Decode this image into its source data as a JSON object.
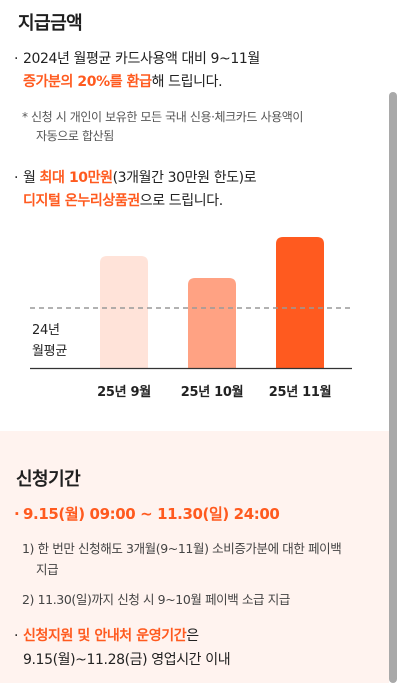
{
  "section1": {
    "title": "지급금액",
    "line1": "2024년 월평균 카드사용액 대비 9~11월",
    "line2_accent": "증가분의 20%를 환급",
    "line2_rest": "해 드립니다.",
    "note_line1": "* 신청 시 개인이 보유한 모든 국내 신용·체크카드 사용액이",
    "note_line2": "자동으로 합산됨",
    "line3_pre": "월 ",
    "line3_accent": "최대 10만원",
    "line3_rest": "(3개월간 30만원 한도)로",
    "line4_accent": "디지털 온누리상품권",
    "line4_rest": "으로 드립니다."
  },
  "chart_data": {
    "type": "bar",
    "categories": [
      "25년 9월",
      "25년 10월",
      "25년 11월"
    ],
    "values": [
      112,
      90,
      131
    ],
    "baseline_label_line1": "24년",
    "baseline_label_line2": "월평균",
    "baseline_value": 60,
    "ylim": [
      0,
      131
    ],
    "colors": [
      "#ffe3d9",
      "#ffa283",
      "#ff5a1f"
    ],
    "axis_color": "#333333",
    "baseline_color": "#999999"
  },
  "section2": {
    "title": "신청기간",
    "date_range": "9.15(월) 09:00 ~ 11.30(일) 24:00",
    "note1_line1": "1) 한 번만 신청해도 3개월(9~11월) 소비증가분에 대한 페이백",
    "note1_line2": "지급",
    "note2": "2) 11.30(일)까지 신청 시 9~10월 페이백 소급 지급",
    "line_accent": "신청지원 및 안내처 운영기간",
    "line_rest": "은",
    "line2": "9.15(월)~11.28(금) 영업시간 이내"
  },
  "colors": {
    "accent": "#ff5a1f",
    "section2_bg": "#fff3ef"
  }
}
